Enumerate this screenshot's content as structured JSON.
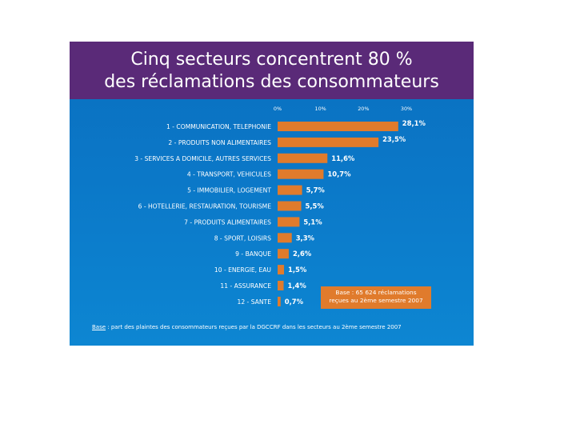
{
  "title": {
    "line1": "Cinq secteurs concentrent 80 %",
    "line2": "des réclamations des consommateurs"
  },
  "base_box": {
    "line1": "Base : 65 624 réclamations",
    "line2": "reçues au 2ème semestre 2007"
  },
  "footnote": {
    "label": "Base",
    "text": " : part des plaintes des consommateurs reçues par la DGCCRF dans les secteurs au 2ème semestre 2007"
  },
  "colors": {
    "header": "#5a2a78",
    "background": "#0b78c8",
    "bar": "#e07b2c",
    "text": "#ffffff"
  },
  "chart_data": {
    "type": "bar",
    "orientation": "horizontal",
    "title": "Cinq secteurs concentrent 80 % des réclamations des consommateurs",
    "xlim": [
      0,
      30
    ],
    "x_ticks": [
      "0%",
      "10%",
      "20%",
      "30%"
    ],
    "categories": [
      "1 - COMMUNICATION, TELEPHONIE",
      "2 -  PRODUITS NON ALIMENTAIRES",
      "3 - SERVICES A DOMICILE, AUTRES SERVICES",
      "4 - TRANSPORT, VEHICULES",
      "5 - IMMOBILIER, LOGEMENT",
      "6 - HOTELLERIE, RESTAURATION, TOURISME",
      "7 - PRODUITS ALIMENTAIRES",
      "8 - SPORT, LOISIRS",
      "9 - BANQUE",
      "10 - ENERGIE, EAU",
      "11 - ASSURANCE",
      "12 - SANTE"
    ],
    "values": [
      28.1,
      23.5,
      11.6,
      10.7,
      5.7,
      5.5,
      5.1,
      3.3,
      2.6,
      1.5,
      1.4,
      0.7
    ],
    "value_labels": [
      "28,1%",
      "23,5%",
      "11,6%",
      "10,7%",
      "5,7%",
      "5,5%",
      "5,1%",
      "3,3%",
      "2,6%",
      "1,5%",
      "1,4%",
      "0,7%"
    ],
    "grid": false
  }
}
